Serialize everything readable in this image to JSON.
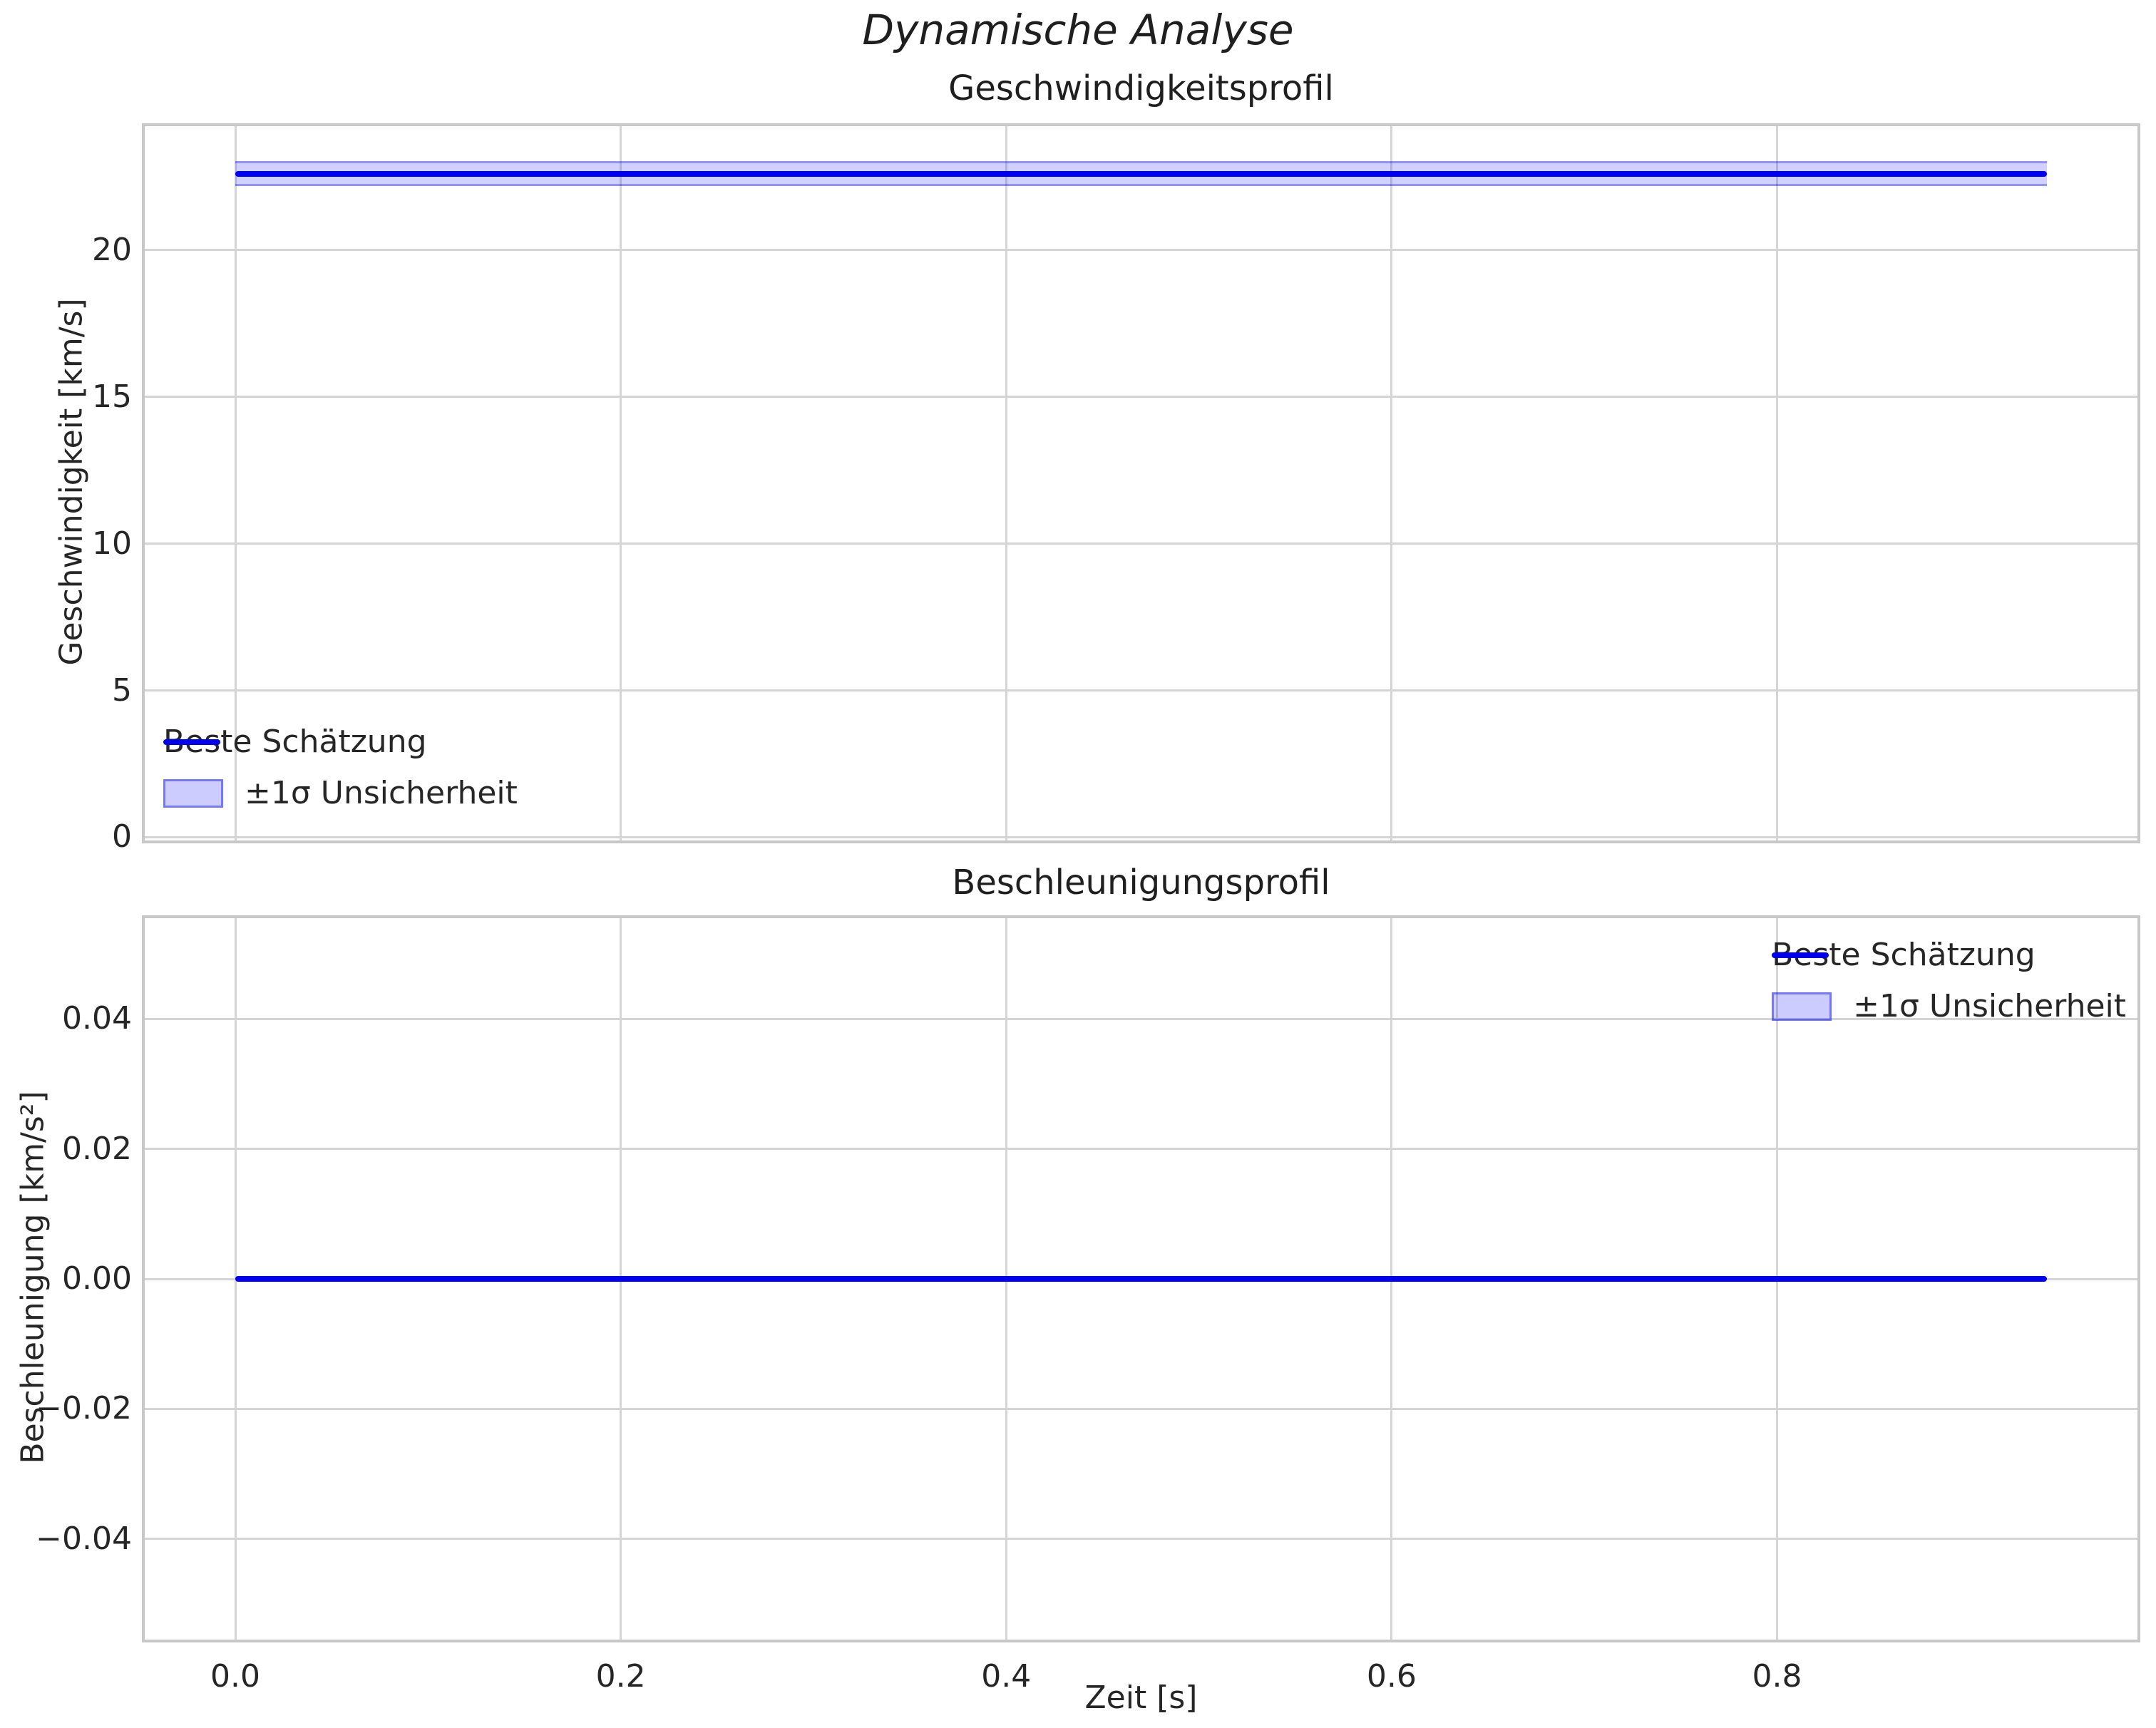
{
  "figure": {
    "title": "Dynamische Analyse"
  },
  "colors": {
    "line": "#0000ee",
    "band_fill_rgba": "rgba(0,0,255,0.18)",
    "band_on_white_hex": "#cdcdf8",
    "grid": "#d5d5d5",
    "spine": "#c8c8c8",
    "text": "#262626"
  },
  "chart_data": [
    {
      "id": "velocity",
      "type": "line",
      "title": "Geschwindigkeitsprofil",
      "ylabel": "Geschwindigkeit [km/s]",
      "xlabel": "",
      "grid": true,
      "xlim": [
        -0.047,
        0.987
      ],
      "ylim": [
        -0.11,
        24.22
      ],
      "xticks": {
        "values": [
          0.0,
          0.2,
          0.4,
          0.6,
          0.8
        ],
        "labels": [
          "0.0",
          "0.2",
          "0.4",
          "0.6",
          "0.8"
        ],
        "show_labels": false
      },
      "yticks": {
        "values": [
          0,
          5,
          10,
          15,
          20
        ],
        "labels": [
          "0",
          "5",
          "10",
          "15",
          "20"
        ]
      },
      "series": [
        {
          "name": "Beste Schätzung",
          "style": "line",
          "x_start": 0.0,
          "x_end": 0.94,
          "constant_value": 22.6
        },
        {
          "name": "±1σ Unsicherheit",
          "style": "band",
          "x_start": 0.0,
          "x_end": 0.94,
          "center": 22.6,
          "sigma": 0.43
        }
      ],
      "legend": {
        "position": "lower-left",
        "entries": [
          {
            "type": "line",
            "label": "Beste Schätzung"
          },
          {
            "type": "patch",
            "label": "±1σ Unsicherheit"
          }
        ]
      }
    },
    {
      "id": "acceleration",
      "type": "line",
      "title": "Beschleunigungsprofil",
      "ylabel": "Beschleunigung [km/s²]",
      "xlabel": "Zeit [s]",
      "grid": true,
      "xlim": [
        -0.047,
        0.987
      ],
      "ylim": [
        -0.0555,
        0.0555
      ],
      "xticks": {
        "values": [
          0.0,
          0.2,
          0.4,
          0.6,
          0.8
        ],
        "labels": [
          "0.0",
          "0.2",
          "0.4",
          "0.6",
          "0.8"
        ],
        "show_labels": true
      },
      "yticks": {
        "values": [
          0.04,
          0.02,
          0.0,
          -0.02,
          -0.04
        ],
        "labels": [
          "0.04",
          "0.02",
          "0.00",
          "−0.02",
          "−0.04"
        ]
      },
      "series": [
        {
          "name": "Beste Schätzung",
          "style": "line",
          "x_start": 0.0,
          "x_end": 0.94,
          "constant_value": 0.0
        },
        {
          "name": "±1σ Unsicherheit",
          "style": "band",
          "x_start": 0.0,
          "x_end": 0.94,
          "center": 0.0,
          "sigma": 0.0
        }
      ],
      "legend": {
        "position": "upper-right",
        "entries": [
          {
            "type": "line",
            "label": "Beste Schätzung"
          },
          {
            "type": "patch",
            "label": "±1σ Unsicherheit"
          }
        ]
      }
    }
  ]
}
